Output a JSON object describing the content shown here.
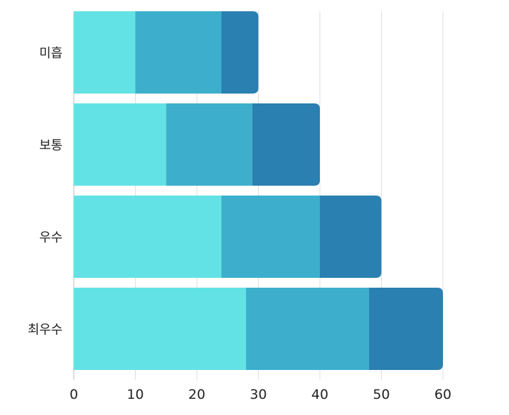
{
  "chart_data": {
    "type": "bar",
    "orientation": "horizontal",
    "stacked": true,
    "categories": [
      "미흡",
      "보통",
      "우수",
      "최우수"
    ],
    "series": [
      {
        "values": [
          10,
          15,
          24,
          28
        ],
        "color": "#63E2E5"
      },
      {
        "values": [
          14,
          14,
          16,
          20
        ],
        "color": "#3DAFCD"
      },
      {
        "values": [
          6,
          11,
          10,
          12
        ],
        "color": "#2A80B0"
      }
    ],
    "xlim": [
      0,
      60
    ],
    "xticks": [
      "0",
      "10",
      "20",
      "30",
      "40",
      "50",
      "60"
    ],
    "grid": "vertical",
    "legend": "none"
  }
}
